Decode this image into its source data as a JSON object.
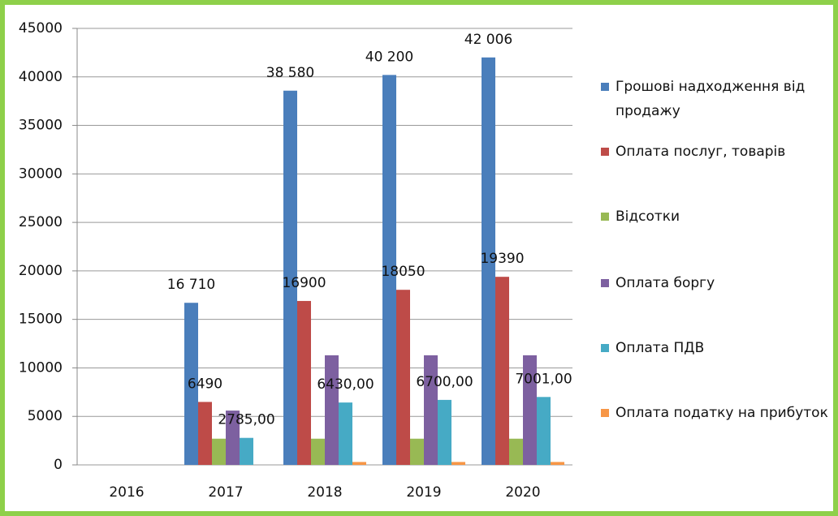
{
  "chart_data": {
    "type": "bar",
    "categories": [
      "2016",
      "2017",
      "2018",
      "2019",
      "2020"
    ],
    "series": [
      {
        "name": "Грошові надходження  від продажу",
        "color": "#4a7ebb",
        "values": [
          0,
          16710,
          38580,
          40200,
          42006
        ],
        "value_labels": [
          null,
          "16 710",
          "38 580",
          "40 200",
          "42 006"
        ]
      },
      {
        "name": "Оплата послуг, товарів",
        "color": "#be4b48",
        "values": [
          0,
          6490,
          16900,
          18050,
          19390
        ],
        "value_labels": [
          null,
          "6490",
          "16900",
          "18050",
          "19390"
        ]
      },
      {
        "name": "Відсотки",
        "color": "#98b954",
        "values": [
          0,
          2700,
          2700,
          2700,
          2700
        ]
      },
      {
        "name": "Оплата боргу",
        "color": "#7d60a0",
        "values": [
          0,
          5600,
          11300,
          11300,
          11300
        ]
      },
      {
        "name": "Оплата ПДВ",
        "color": "#46aac5",
        "values": [
          0,
          2785,
          6430,
          6700,
          7001
        ],
        "value_labels": [
          null,
          "2785,00",
          "6430,00",
          "6700,00",
          "7001,00"
        ]
      },
      {
        "name": "Оплата податку на прибуток",
        "color": "#f79646",
        "values": [
          0,
          0,
          300,
          300,
          300
        ]
      }
    ],
    "ylim": [
      0,
      45000
    ],
    "yticks": [
      0,
      5000,
      10000,
      15000,
      20000,
      25000,
      30000,
      35000,
      40000,
      45000
    ],
    "grid": true,
    "legend": "right"
  }
}
